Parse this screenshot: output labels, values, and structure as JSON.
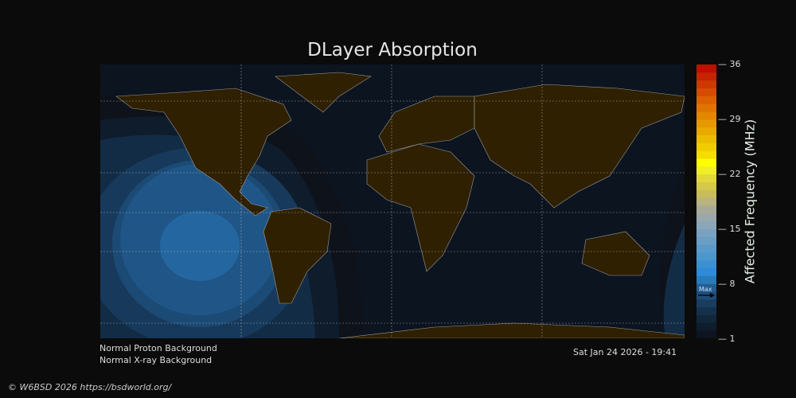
{
  "title": "DLayer Absorption",
  "colorbar": {
    "label": "Affected Frequency (MHz)",
    "ticks": [
      "36",
      "29",
      "22",
      "15",
      "8",
      "1"
    ],
    "range": [
      1,
      36
    ],
    "max_marker_label": "Max",
    "max_marker_value": 6.5,
    "colors": [
      "#0e1420",
      "#0f1c2c",
      "#12263a",
      "#15304a",
      "#1a3d5e",
      "#1e4c78",
      "#235e94",
      "#2a7ab8",
      "#2f8ad8",
      "#3a90d0",
      "#4b96cc",
      "#5a9ac8",
      "#6a9ec4",
      "#7aa2c0",
      "#8aa6b8",
      "#9aa8ac",
      "#a8aa98",
      "#b8b47e",
      "#c8bc5c",
      "#d6c84a",
      "#e2d83c",
      "#f0ee28",
      "#ffff00",
      "#f6dc00",
      "#f0cc00",
      "#ecbc00",
      "#e8aa00",
      "#e69800",
      "#e48600",
      "#e07400",
      "#da6000",
      "#d44c00",
      "#cc3800",
      "#c42400",
      "#bc1000"
    ]
  },
  "legend": {
    "proton": "Normal Proton Background",
    "xray": "Normal X-ray Background"
  },
  "timestamp": "Sat Jan 24 2026 - 19:41",
  "copyright": "© W6BSD 2026 https://bsdworld.org/",
  "colors": {
    "ocean": "#0c1420",
    "land": "#2e2000",
    "coast": "#9a9a9a",
    "grid": "#cccccc"
  }
}
